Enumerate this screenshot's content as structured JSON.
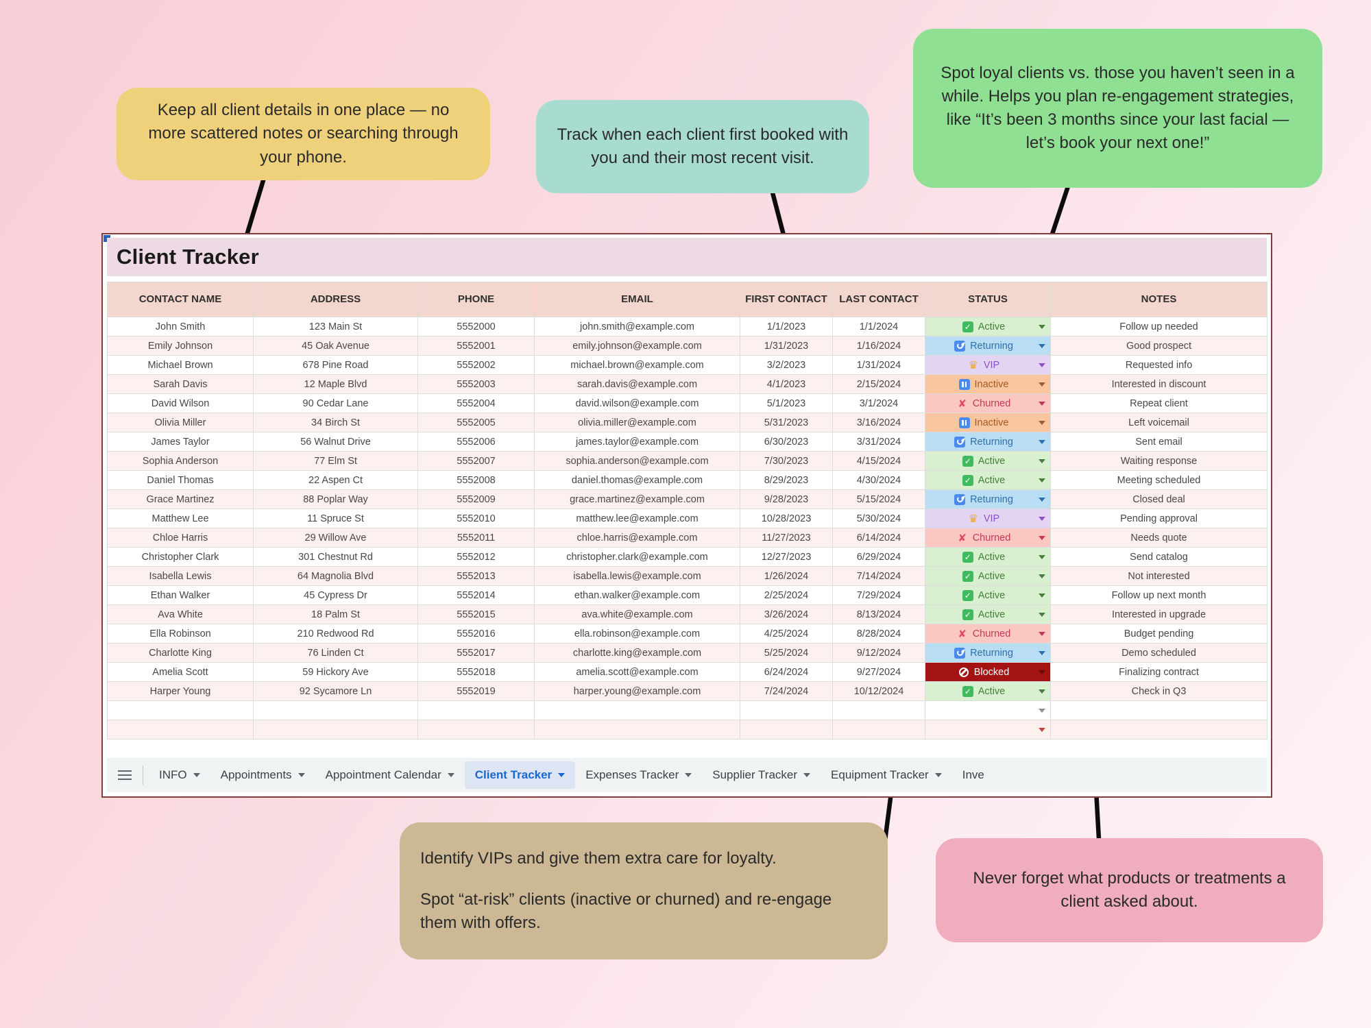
{
  "callouts": {
    "keep_details": {
      "text": "Keep all client details in one place — no more scattered notes or searching through your phone.",
      "bg": "#f0d17b"
    },
    "track_contact": {
      "text": "Track when each client first booked with you and their most recent visit.",
      "bg": "#a9dcd1"
    },
    "spot_loyal": {
      "text": "Spot loyal clients vs. those you haven’t seen in a while. Helps you plan re-engagement strategies, like “It’s been 3 months since your last facial — let’s book your next one!”",
      "bg": "#90e094"
    },
    "identify_vips": {
      "line1": "Identify VIPs and give them extra care for loyalty.",
      "line2": "Spot “at-risk” clients (inactive or churned) and re-engage them with offers.",
      "bg": "#ccb894"
    },
    "never_forget": {
      "text": "Never forget what products or treatments a client asked about.",
      "bg": "#efadbd"
    }
  },
  "sheet": {
    "title": "Client Tracker",
    "headers": [
      "CONTACT NAME",
      "ADDRESS",
      "PHONE",
      "EMAIL",
      "FIRST CONTACT",
      "LAST CONTACT",
      "STATUS",
      "NOTES"
    ],
    "rows": [
      {
        "name": "John Smith",
        "address": "123 Main St",
        "phone": "5552000",
        "email": "john.smith@example.com",
        "first_contact": "1/1/2023",
        "last_contact": "1/1/2024",
        "status": "Active",
        "note": "Follow up needed"
      },
      {
        "name": "Emily Johnson",
        "address": "45 Oak Avenue",
        "phone": "5552001",
        "email": "emily.johnson@example.com",
        "first_contact": "1/31/2023",
        "last_contact": "1/16/2024",
        "status": "Returning",
        "note": "Good prospect"
      },
      {
        "name": "Michael Brown",
        "address": "678 Pine Road",
        "phone": "5552002",
        "email": "michael.brown@example.com",
        "first_contact": "3/2/2023",
        "last_contact": "1/31/2024",
        "status": "VIP",
        "note": "Requested info"
      },
      {
        "name": "Sarah Davis",
        "address": "12 Maple Blvd",
        "phone": "5552003",
        "email": "sarah.davis@example.com",
        "first_contact": "4/1/2023",
        "last_contact": "2/15/2024",
        "status": "Inactive",
        "note": "Interested in discount"
      },
      {
        "name": "David Wilson",
        "address": "90 Cedar Lane",
        "phone": "5552004",
        "email": "david.wilson@example.com",
        "first_contact": "5/1/2023",
        "last_contact": "3/1/2024",
        "status": "Churned",
        "note": "Repeat client"
      },
      {
        "name": "Olivia Miller",
        "address": "34 Birch St",
        "phone": "5552005",
        "email": "olivia.miller@example.com",
        "first_contact": "5/31/2023",
        "last_contact": "3/16/2024",
        "status": "Inactive",
        "note": "Left voicemail"
      },
      {
        "name": "James Taylor",
        "address": "56 Walnut Drive",
        "phone": "5552006",
        "email": "james.taylor@example.com",
        "first_contact": "6/30/2023",
        "last_contact": "3/31/2024",
        "status": "Returning",
        "note": "Sent email"
      },
      {
        "name": "Sophia Anderson",
        "address": "77 Elm St",
        "phone": "5552007",
        "email": "sophia.anderson@example.com",
        "first_contact": "7/30/2023",
        "last_contact": "4/15/2024",
        "status": "Active",
        "note": "Waiting response"
      },
      {
        "name": "Daniel Thomas",
        "address": "22 Aspen Ct",
        "phone": "5552008",
        "email": "daniel.thomas@example.com",
        "first_contact": "8/29/2023",
        "last_contact": "4/30/2024",
        "status": "Active",
        "note": "Meeting scheduled"
      },
      {
        "name": "Grace Martinez",
        "address": "88 Poplar Way",
        "phone": "5552009",
        "email": "grace.martinez@example.com",
        "first_contact": "9/28/2023",
        "last_contact": "5/15/2024",
        "status": "Returning",
        "note": "Closed deal"
      },
      {
        "name": "Matthew Lee",
        "address": "11 Spruce St",
        "phone": "5552010",
        "email": "matthew.lee@example.com",
        "first_contact": "10/28/2023",
        "last_contact": "5/30/2024",
        "status": "VIP",
        "note": "Pending approval"
      },
      {
        "name": "Chloe Harris",
        "address": "29 Willow Ave",
        "phone": "5552011",
        "email": "chloe.harris@example.com",
        "first_contact": "11/27/2023",
        "last_contact": "6/14/2024",
        "status": "Churned",
        "note": "Needs quote"
      },
      {
        "name": "Christopher Clark",
        "address": "301 Chestnut Rd",
        "phone": "5552012",
        "email": "christopher.clark@example.com",
        "first_contact": "12/27/2023",
        "last_contact": "6/29/2024",
        "status": "Active",
        "note": "Send catalog"
      },
      {
        "name": "Isabella Lewis",
        "address": "64 Magnolia Blvd",
        "phone": "5552013",
        "email": "isabella.lewis@example.com",
        "first_contact": "1/26/2024",
        "last_contact": "7/14/2024",
        "status": "Active",
        "note": "Not interested"
      },
      {
        "name": "Ethan Walker",
        "address": "45 Cypress Dr",
        "phone": "5552014",
        "email": "ethan.walker@example.com",
        "first_contact": "2/25/2024",
        "last_contact": "7/29/2024",
        "status": "Active",
        "note": "Follow up next month"
      },
      {
        "name": "Ava White",
        "address": "18 Palm St",
        "phone": "5552015",
        "email": "ava.white@example.com",
        "first_contact": "3/26/2024",
        "last_contact": "8/13/2024",
        "status": "Active",
        "note": "Interested in upgrade"
      },
      {
        "name": "Ella Robinson",
        "address": "210 Redwood Rd",
        "phone": "5552016",
        "email": "ella.robinson@example.com",
        "first_contact": "4/25/2024",
        "last_contact": "8/28/2024",
        "status": "Churned",
        "note": "Budget pending"
      },
      {
        "name": "Charlotte King",
        "address": "76 Linden Ct",
        "phone": "5552017",
        "email": "charlotte.king@example.com",
        "first_contact": "5/25/2024",
        "last_contact": "9/12/2024",
        "status": "Returning",
        "note": "Demo scheduled"
      },
      {
        "name": "Amelia Scott",
        "address": "59 Hickory Ave",
        "phone": "5552018",
        "email": "amelia.scott@example.com",
        "first_contact": "6/24/2024",
        "last_contact": "9/27/2024",
        "status": "Blocked",
        "note": "Finalizing contract"
      },
      {
        "name": "Harper Young",
        "address": "92 Sycamore Ln",
        "phone": "5552019",
        "email": "harper.young@example.com",
        "first_contact": "7/24/2024",
        "last_contact": "10/12/2024",
        "status": "Active",
        "note": "Check in Q3"
      }
    ],
    "status_styles": {
      "Active": {
        "bg": "#d8f0cf",
        "fg": "#44803c",
        "caret": "#44803c",
        "icon": "check"
      },
      "Returning": {
        "bg": "#b9def3",
        "fg": "#2e6fad",
        "caret": "#2e6fad",
        "icon": "refresh"
      },
      "VIP": {
        "bg": "#e4d4f3",
        "fg": "#8c4fc4",
        "caret": "#8c4fc4",
        "icon": "crown"
      },
      "Inactive": {
        "bg": "#f9c59e",
        "fg": "#a35b24",
        "caret": "#a35b24",
        "icon": "pause"
      },
      "Churned": {
        "bg": "#fbc7c3",
        "fg": "#c23a50",
        "caret": "#c23a50",
        "icon": "cross"
      },
      "Blocked": {
        "bg": "#a31313",
        "fg": "#ffffff",
        "caret": "#6d0808",
        "icon": "no-entry"
      }
    },
    "empty_rows": [
      {
        "caret_color": "#8f8f8f"
      },
      {
        "caret_color": "#c74343"
      }
    ],
    "tab_bar": {
      "tabs": [
        {
          "label": "INFO",
          "active": false
        },
        {
          "label": "Appointments",
          "active": false
        },
        {
          "label": "Appointment Calendar",
          "active": false
        },
        {
          "label": "Client Tracker",
          "active": true
        },
        {
          "label": "Expenses Tracker",
          "active": false
        },
        {
          "label": "Supplier Tracker",
          "active": false
        },
        {
          "label": "Equipment Tracker",
          "active": false
        },
        {
          "label": "Inve",
          "active": false,
          "caret": false
        }
      ]
    }
  }
}
